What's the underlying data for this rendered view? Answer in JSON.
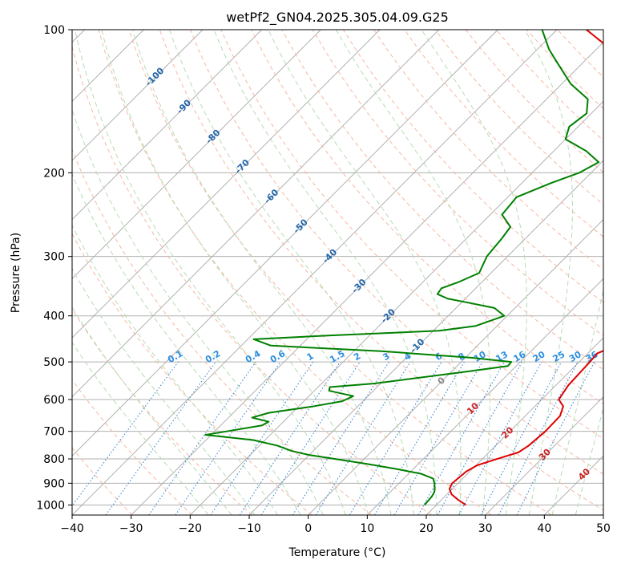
{
  "chart_data": {
    "type": "skew-t",
    "title": "wetPf2_GN04.2025.305.04.09.G25",
    "xlabel": "Temperature (°C)",
    "ylabel": "Pressure (hPa)",
    "xlim": [
      -40,
      50
    ],
    "ylim": [
      1050,
      100
    ],
    "x_ticks": [
      -40,
      -30,
      -20,
      -10,
      0,
      10,
      20,
      30,
      40,
      50
    ],
    "x_tick_labels": [
      "−40",
      "−30",
      "−20",
      "−10",
      "0",
      "10",
      "20",
      "30",
      "40",
      "50"
    ],
    "y_ticks": [
      1000,
      900,
      800,
      700,
      600,
      500,
      400,
      300,
      200,
      100
    ],
    "y_tick_labels": [
      "1000",
      "900",
      "800",
      "700",
      "600",
      "500",
      "400",
      "300",
      "200",
      "100"
    ],
    "isotherm_labels": [
      {
        "text": "-100",
        "temp": -100
      },
      {
        "text": "-90",
        "temp": -90
      },
      {
        "text": "-80",
        "temp": -80
      },
      {
        "text": "-70",
        "temp": -70
      },
      {
        "text": "-60",
        "temp": -60
      },
      {
        "text": "-50",
        "temp": -50
      },
      {
        "text": "-40",
        "temp": -40
      },
      {
        "text": "-30",
        "temp": -30
      },
      {
        "text": "-20",
        "temp": -20
      },
      {
        "text": "-10",
        "temp": -10
      },
      {
        "text": "0",
        "temp": 0
      },
      {
        "text": "10",
        "temp": 10
      },
      {
        "text": "20",
        "temp": 20
      },
      {
        "text": "30",
        "temp": 30
      },
      {
        "text": "40",
        "temp": 40
      }
    ],
    "mixing_ratio_labels": [
      "0.1",
      "0.2",
      "0.4",
      "0.6",
      "1",
      "1.5",
      "2",
      "3",
      "4",
      "6",
      "8",
      "10",
      "13",
      "16",
      "20",
      "25",
      "30",
      "36"
    ],
    "mixing_ratio_values": [
      0.1,
      0.2,
      0.4,
      0.6,
      1,
      1.5,
      2,
      3,
      4,
      6,
      8,
      10,
      13,
      16,
      20,
      25,
      30,
      36
    ],
    "series": [
      {
        "name": "temperature",
        "color": "#e00000",
        "points": [
          [
            1000,
            25.0
          ],
          [
            975,
            22.8
          ],
          [
            950,
            20.8
          ],
          [
            925,
            19.5
          ],
          [
            900,
            19.0
          ],
          [
            875,
            19.2
          ],
          [
            850,
            19.4
          ],
          [
            825,
            20.2
          ],
          [
            800,
            22.5
          ],
          [
            775,
            25.0
          ],
          [
            750,
            25.6
          ],
          [
            700,
            26.0
          ],
          [
            650,
            25.9
          ],
          [
            620,
            24.8
          ],
          [
            600,
            22.9
          ],
          [
            560,
            22.1
          ],
          [
            500,
            21.8
          ],
          [
            480,
            21.6
          ],
          [
            460,
            23.6
          ],
          [
            445,
            24.8
          ],
          [
            420,
            24.6
          ],
          [
            400,
            24.0
          ],
          [
            375,
            22.9
          ],
          [
            350,
            21.8
          ],
          [
            325,
            19.7
          ],
          [
            300,
            17.2
          ],
          [
            280,
            15.6
          ],
          [
            260,
            13.6
          ],
          [
            240,
            11.5
          ],
          [
            220,
            9.2
          ],
          [
            200,
            7.0
          ],
          [
            190,
            6.2
          ],
          [
            180,
            8.0
          ],
          [
            170,
            6.8
          ],
          [
            160,
            3.3
          ],
          [
            150,
            -2.0
          ],
          [
            140,
            -7.5
          ],
          [
            130,
            -14.0
          ],
          [
            120,
            -20.5
          ],
          [
            110,
            -27.5
          ],
          [
            100,
            -35.0
          ]
        ]
      },
      {
        "name": "dewpoint",
        "color": "#008000",
        "points": [
          [
            1000,
            18.0
          ],
          [
            980,
            17.9
          ],
          [
            960,
            17.8
          ],
          [
            940,
            17.5
          ],
          [
            920,
            16.8
          ],
          [
            900,
            16.0
          ],
          [
            880,
            15.0
          ],
          [
            860,
            12.2
          ],
          [
            840,
            7.2
          ],
          [
            820,
            1.4
          ],
          [
            800,
            -5.0
          ],
          [
            785,
            -10.0
          ],
          [
            770,
            -13.6
          ],
          [
            750,
            -17.0
          ],
          [
            730,
            -22.0
          ],
          [
            712,
            -31.0
          ],
          [
            700,
            -28.0
          ],
          [
            680,
            -23.0
          ],
          [
            668,
            -22.5
          ],
          [
            655,
            -26.0
          ],
          [
            640,
            -24.0
          ],
          [
            620,
            -17.5
          ],
          [
            605,
            -13.5
          ],
          [
            590,
            -12.5
          ],
          [
            575,
            -17.5
          ],
          [
            565,
            -18.0
          ],
          [
            555,
            -11.0
          ],
          [
            540,
            -4.5
          ],
          [
            525,
            2.2
          ],
          [
            510,
            8.6
          ],
          [
            500,
            8.5
          ],
          [
            490,
            1.0
          ],
          [
            475,
            -15.0
          ],
          [
            462,
            -35.0
          ],
          [
            448,
            -39.0
          ],
          [
            440,
            -27.0
          ],
          [
            430,
            -9.0
          ],
          [
            420,
            -3.6
          ],
          [
            400,
            -0.5
          ],
          [
            385,
            -3.5
          ],
          [
            375,
            -9.0
          ],
          [
            368,
            -13.0
          ],
          [
            360,
            -15.5
          ],
          [
            350,
            -15.8
          ],
          [
            340,
            -14.0
          ],
          [
            325,
            -12.0
          ],
          [
            300,
            -13.5
          ],
          [
            275,
            -14.0
          ],
          [
            260,
            -14.5
          ],
          [
            245,
            -18.0
          ],
          [
            225,
            -18.5
          ],
          [
            210,
            -15.0
          ],
          [
            200,
            -12.0
          ],
          [
            190,
            -10.5
          ],
          [
            180,
            -14.5
          ],
          [
            170,
            -20.0
          ],
          [
            160,
            -21.5
          ],
          [
            150,
            -20.8
          ],
          [
            140,
            -23.0
          ],
          [
            130,
            -28.5
          ],
          [
            115,
            -35.5
          ],
          [
            110,
            -38.0
          ],
          [
            100,
            -42.5
          ]
        ]
      }
    ]
  }
}
